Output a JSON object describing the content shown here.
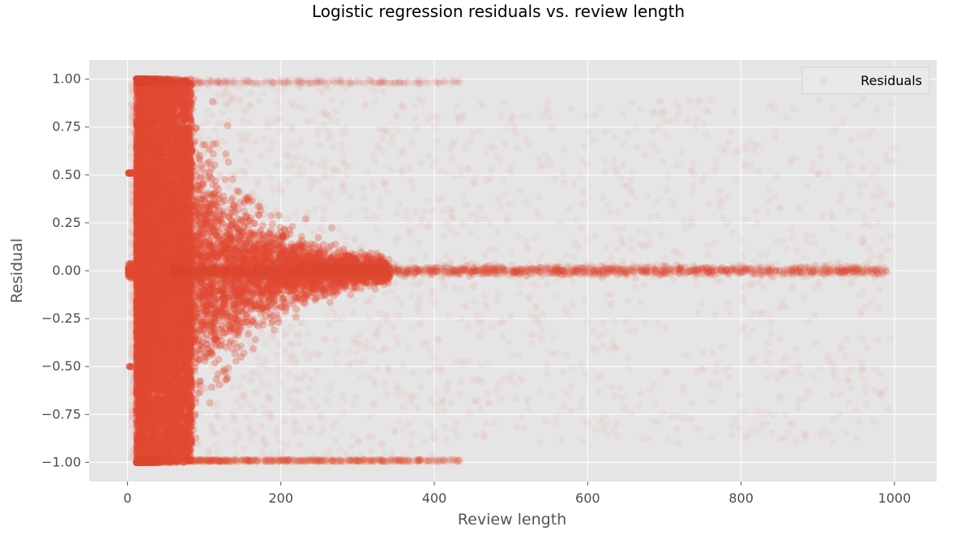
{
  "chart_data": {
    "type": "scatter",
    "title": "Logistic regression residuals vs. review length",
    "xlabel": "Review length",
    "ylabel": "Residual",
    "xlim": [
      -50,
      1055
    ],
    "ylim": [
      -1.1,
      1.1
    ],
    "x_ticks": [
      0,
      200,
      400,
      600,
      800,
      1000
    ],
    "x_tick_labels": [
      "0",
      "200",
      "400",
      "600",
      "800",
      "1000"
    ],
    "y_ticks": [
      1.0,
      0.75,
      0.5,
      0.25,
      0.0,
      -0.25,
      -0.5,
      -0.75,
      -1.0
    ],
    "y_tick_labels": [
      "1.00",
      "0.75",
      "0.50",
      "0.25",
      "0.00",
      "−0.25",
      "−0.50",
      "−0.75",
      "−1.00"
    ],
    "grid": true,
    "legend_position": "top-right",
    "series": [
      {
        "name": "Residuals",
        "color": "#e24a33",
        "alpha": 0.05,
        "x_range": [
          1,
          1000
        ],
        "y_range": [
          -1.0,
          1.0
        ]
      }
    ]
  }
}
